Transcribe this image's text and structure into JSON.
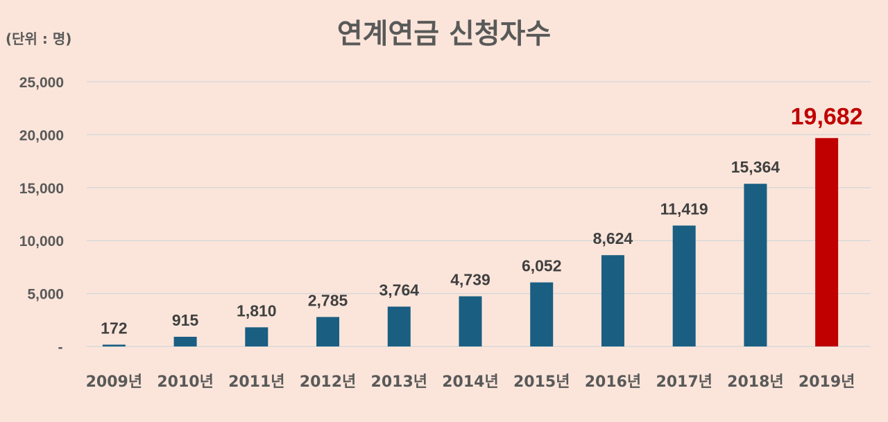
{
  "chart_data": {
    "type": "bar",
    "title": "연계연금 신청자수",
    "unit_label": "(단위 : 명)",
    "categories": [
      "2009년",
      "2010년",
      "2011년",
      "2012년",
      "2013년",
      "2014년",
      "2015년",
      "2016년",
      "2017년",
      "2018년",
      "2019년"
    ],
    "values": [
      172,
      915,
      1810,
      2785,
      3764,
      4739,
      6052,
      8624,
      11419,
      15364,
      19682
    ],
    "data_labels": [
      "172",
      "915",
      "1,810",
      "2,785",
      "3,764",
      "4,739",
      "6,052",
      "8,624",
      "11,419",
      "15,364",
      "19,682"
    ],
    "ylim": [
      0,
      25000
    ],
    "yticks": [
      0,
      5000,
      10000,
      15000,
      20000,
      25000
    ],
    "ytick_labels": [
      "-",
      "5,000",
      "10,000",
      "15,000",
      "20,000",
      "25,000"
    ],
    "grid": true,
    "legend": "none",
    "highlight_index": 10,
    "colors": {
      "bar": "#1a5e82",
      "highlight": "#c00000",
      "highlight_label": "#c00000"
    }
  }
}
